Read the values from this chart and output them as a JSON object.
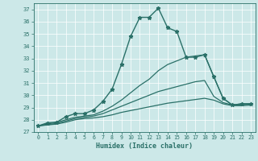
{
  "bg_color": "#cce8e8",
  "grid_color": "#ffffff",
  "line_color": "#2a7068",
  "xlabel": "Humidex (Indice chaleur)",
  "xlim": [
    -0.5,
    23.5
  ],
  "ylim": [
    27,
    37.5
  ],
  "yticks": [
    27,
    28,
    29,
    30,
    31,
    32,
    33,
    34,
    35,
    36,
    37
  ],
  "xticks": [
    0,
    1,
    2,
    3,
    4,
    5,
    6,
    7,
    8,
    9,
    10,
    11,
    12,
    13,
    14,
    15,
    16,
    17,
    18,
    19,
    20,
    21,
    22,
    23
  ],
  "series": [
    {
      "x": [
        0,
        1,
        2,
        3,
        4,
        5,
        6,
        7,
        8,
        9,
        10,
        11,
        12,
        13,
        14,
        15,
        16,
        17,
        18,
        19,
        20,
        21,
        22,
        23
      ],
      "y": [
        27.5,
        27.75,
        27.8,
        28.25,
        28.5,
        28.5,
        28.8,
        29.5,
        30.5,
        32.5,
        34.8,
        36.35,
        36.35,
        37.1,
        35.5,
        35.2,
        33.1,
        33.1,
        33.3,
        31.5,
        29.75,
        29.2,
        29.3,
        29.3
      ],
      "marker": "*",
      "markersize": 3.5,
      "linewidth": 1.0
    },
    {
      "x": [
        0,
        2,
        3,
        4,
        5,
        6,
        7,
        8,
        9,
        10,
        11,
        12,
        13,
        14,
        15,
        16,
        17,
        18,
        19,
        20,
        21,
        22,
        23
      ],
      "y": [
        27.5,
        27.8,
        28.0,
        28.2,
        28.3,
        28.4,
        28.7,
        29.1,
        29.6,
        30.2,
        30.8,
        31.3,
        32.0,
        32.5,
        32.8,
        33.1,
        33.2,
        33.3,
        31.5,
        29.75,
        29.2,
        29.3,
        29.3
      ],
      "marker": null,
      "markersize": 0,
      "linewidth": 0.9
    },
    {
      "x": [
        0,
        2,
        3,
        4,
        5,
        6,
        7,
        8,
        9,
        10,
        11,
        12,
        13,
        14,
        15,
        16,
        17,
        18,
        19,
        20,
        21,
        22,
        23
      ],
      "y": [
        27.5,
        27.7,
        27.9,
        28.1,
        28.2,
        28.3,
        28.5,
        28.8,
        29.1,
        29.4,
        29.7,
        30.0,
        30.3,
        30.5,
        30.7,
        30.9,
        31.1,
        31.2,
        29.9,
        29.4,
        29.2,
        29.2,
        29.3
      ],
      "marker": null,
      "markersize": 0,
      "linewidth": 0.9
    },
    {
      "x": [
        0,
        2,
        3,
        4,
        5,
        6,
        7,
        8,
        9,
        10,
        11,
        12,
        13,
        14,
        15,
        16,
        17,
        18,
        19,
        20,
        21,
        22,
        23
      ],
      "y": [
        27.5,
        27.65,
        27.8,
        28.0,
        28.1,
        28.15,
        28.25,
        28.4,
        28.6,
        28.75,
        28.9,
        29.05,
        29.2,
        29.35,
        29.45,
        29.55,
        29.65,
        29.75,
        29.6,
        29.3,
        29.15,
        29.15,
        29.2
      ],
      "marker": null,
      "markersize": 0,
      "linewidth": 0.9
    }
  ]
}
